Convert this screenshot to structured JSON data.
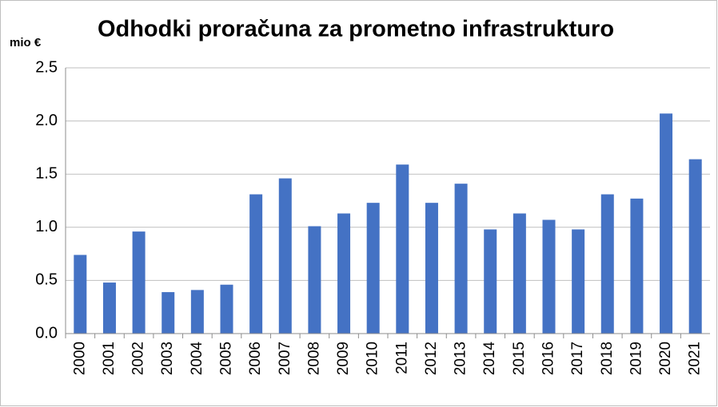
{
  "chart_data": {
    "type": "bar",
    "title": "Odhodki proračuna za prometno infrastrukturo",
    "y_label": "mio €",
    "categories": [
      "2000",
      "2001",
      "2002",
      "2003",
      "2004",
      "2005",
      "2006",
      "2007",
      "2008",
      "2009",
      "2010",
      "2011",
      "2012",
      "2013",
      "2014",
      "2015",
      "2016",
      "2017",
      "2018",
      "2019",
      "2020",
      "2021"
    ],
    "values": [
      0.74,
      0.48,
      0.96,
      0.39,
      0.41,
      0.46,
      1.31,
      1.46,
      1.01,
      1.13,
      1.23,
      1.59,
      1.23,
      1.41,
      0.98,
      1.13,
      1.07,
      0.98,
      1.31,
      1.27,
      2.07,
      1.64
    ],
    "color": "#4472c4",
    "ylim": [
      0,
      2.5
    ],
    "yticks": [
      {
        "value": 0,
        "label": "0.0"
      },
      0.5,
      {
        "value": 1,
        "label": "1.0"
      },
      1.5,
      {
        "value": 2,
        "label": "2.0"
      },
      2.5
    ],
    "grid": true
  }
}
